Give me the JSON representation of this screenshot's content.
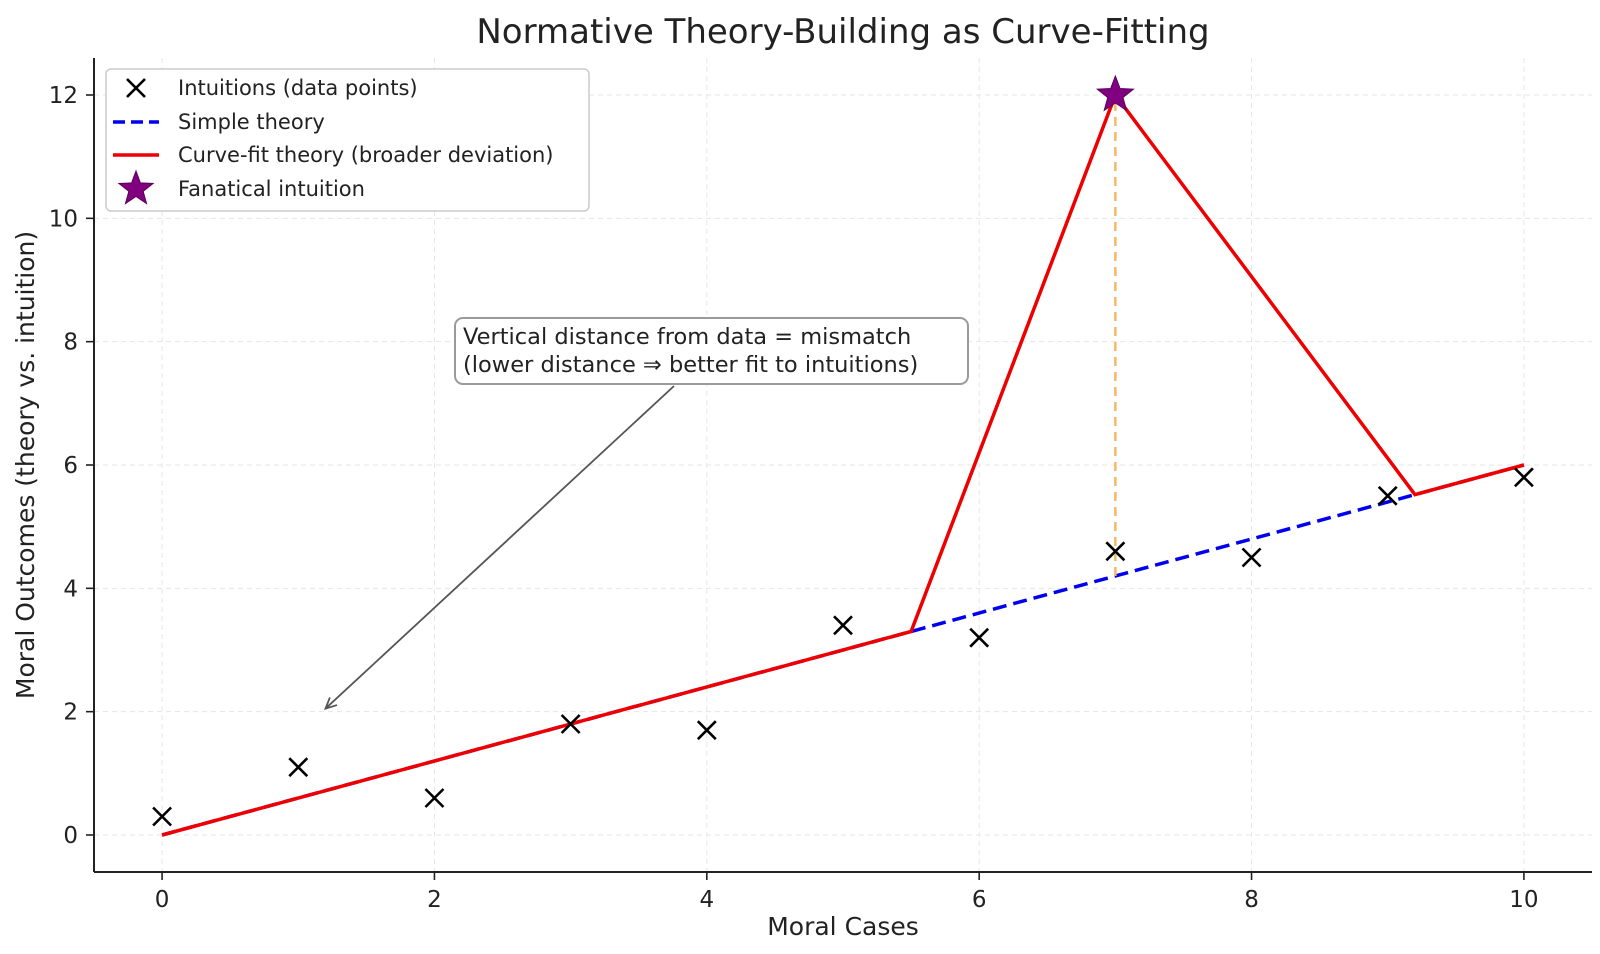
{
  "chart_data": {
    "type": "line",
    "title": "Normative Theory-Building as Curve-Fitting",
    "xlabel": "Moral Cases",
    "ylabel": "Moral Outcomes (theory vs. intuition)",
    "xlim": [
      -0.5,
      10.5
    ],
    "ylim": [
      -0.6,
      12.6
    ],
    "xticks": [
      0,
      2,
      4,
      6,
      8,
      10
    ],
    "yticks": [
      0,
      2,
      4,
      6,
      8,
      10,
      12
    ],
    "grid": true,
    "legend_position": "top-left",
    "legend": [
      {
        "label": "Intuitions (data points)",
        "marker": "x",
        "color": "#000000"
      },
      {
        "label": "Simple theory",
        "style": "dashed",
        "color": "#0000ee"
      },
      {
        "label": "Curve-fit theory (broader deviation)",
        "style": "solid",
        "color": "#ee0000"
      },
      {
        "label": "Fanatical intuition",
        "marker": "star",
        "color": "#800080"
      }
    ],
    "series": [
      {
        "name": "Intuitions (data points)",
        "type": "scatter",
        "x": [
          0,
          1,
          2,
          3,
          4,
          5,
          6,
          7,
          8,
          9,
          10
        ],
        "y": [
          0.3,
          1.1,
          0.6,
          1.8,
          1.7,
          3.4,
          3.2,
          4.6,
          4.5,
          5.5,
          5.8
        ]
      },
      {
        "name": "Simple theory",
        "type": "line",
        "x": [
          0,
          10
        ],
        "y": [
          0,
          6
        ]
      },
      {
        "name": "Curve-fit theory (broader deviation)",
        "type": "line",
        "x": [
          0,
          5.5,
          7,
          9.2,
          10
        ],
        "y": [
          0,
          3.3,
          12,
          5.52,
          6
        ]
      },
      {
        "name": "Fanatical intuition",
        "type": "scatter",
        "x": [
          7
        ],
        "y": [
          12
        ]
      }
    ],
    "deviation_line": {
      "x": 7,
      "y_from": 4.2,
      "y_to": 12,
      "color": "#f5b865"
    },
    "annotation": {
      "lines": [
        "Vertical distance from data = mismatch",
        "(lower distance ⇒ better fit to intuitions)"
      ],
      "arrow_to": {
        "x": 1.2,
        "y": 2.05
      }
    }
  }
}
